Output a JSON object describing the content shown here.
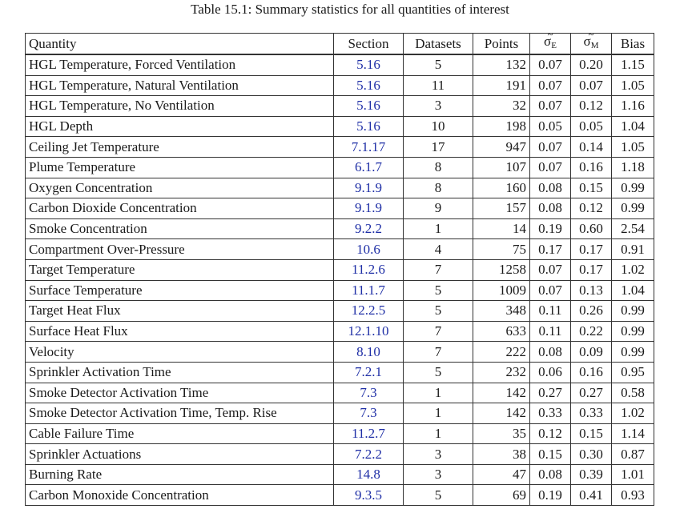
{
  "caption": "Table 15.1: Summary statistics for all quantities of interest",
  "columns": {
    "quantity": "Quantity",
    "section": "Section",
    "datasets": "Datasets",
    "points": "Points",
    "sigma_e_symbol": "σ",
    "sigma_e_sub": "E",
    "sigma_m_symbol": "σ",
    "sigma_m_sub": "M",
    "bias": "Bias"
  },
  "rows": [
    {
      "quantity": "HGL Temperature, Forced Ventilation",
      "section": "5.16",
      "datasets": "5",
      "points": "132",
      "sigma_e": "0.07",
      "sigma_m": "0.20",
      "bias": "1.15"
    },
    {
      "quantity": "HGL Temperature, Natural Ventilation",
      "section": "5.16",
      "datasets": "11",
      "points": "191",
      "sigma_e": "0.07",
      "sigma_m": "0.07",
      "bias": "1.05"
    },
    {
      "quantity": "HGL Temperature, No Ventilation",
      "section": "5.16",
      "datasets": "3",
      "points": "32",
      "sigma_e": "0.07",
      "sigma_m": "0.12",
      "bias": "1.16"
    },
    {
      "quantity": "HGL Depth",
      "section": "5.16",
      "datasets": "10",
      "points": "198",
      "sigma_e": "0.05",
      "sigma_m": "0.05",
      "bias": "1.04"
    },
    {
      "quantity": "Ceiling Jet Temperature",
      "section": "7.1.17",
      "datasets": "17",
      "points": "947",
      "sigma_e": "0.07",
      "sigma_m": "0.14",
      "bias": "1.05"
    },
    {
      "quantity": "Plume Temperature",
      "section": "6.1.7",
      "datasets": "8",
      "points": "107",
      "sigma_e": "0.07",
      "sigma_m": "0.16",
      "bias": "1.18"
    },
    {
      "quantity": "Oxygen Concentration",
      "section": "9.1.9",
      "datasets": "8",
      "points": "160",
      "sigma_e": "0.08",
      "sigma_m": "0.15",
      "bias": "0.99"
    },
    {
      "quantity": "Carbon Dioxide Concentration",
      "section": "9.1.9",
      "datasets": "9",
      "points": "157",
      "sigma_e": "0.08",
      "sigma_m": "0.12",
      "bias": "0.99"
    },
    {
      "quantity": "Smoke Concentration",
      "section": "9.2.2",
      "datasets": "1",
      "points": "14",
      "sigma_e": "0.19",
      "sigma_m": "0.60",
      "bias": "2.54"
    },
    {
      "quantity": "Compartment Over-Pressure",
      "section": "10.6",
      "datasets": "4",
      "points": "75",
      "sigma_e": "0.17",
      "sigma_m": "0.17",
      "bias": "0.91"
    },
    {
      "quantity": "Target Temperature",
      "section": "11.2.6",
      "datasets": "7",
      "points": "1258",
      "sigma_e": "0.07",
      "sigma_m": "0.17",
      "bias": "1.02"
    },
    {
      "quantity": "Surface Temperature",
      "section": "11.1.7",
      "datasets": "5",
      "points": "1009",
      "sigma_e": "0.07",
      "sigma_m": "0.13",
      "bias": "1.04"
    },
    {
      "quantity": "Target Heat Flux",
      "section": "12.2.5",
      "datasets": "5",
      "points": "348",
      "sigma_e": "0.11",
      "sigma_m": "0.26",
      "bias": "0.99"
    },
    {
      "quantity": "Surface Heat Flux",
      "section": "12.1.10",
      "datasets": "7",
      "points": "633",
      "sigma_e": "0.11",
      "sigma_m": "0.22",
      "bias": "0.99"
    },
    {
      "quantity": "Velocity",
      "section": "8.10",
      "datasets": "7",
      "points": "222",
      "sigma_e": "0.08",
      "sigma_m": "0.09",
      "bias": "0.99"
    },
    {
      "quantity": "Sprinkler Activation Time",
      "section": "7.2.1",
      "datasets": "5",
      "points": "232",
      "sigma_e": "0.06",
      "sigma_m": "0.16",
      "bias": "0.95"
    },
    {
      "quantity": "Smoke Detector Activation Time",
      "section": "7.3",
      "datasets": "1",
      "points": "142",
      "sigma_e": "0.27",
      "sigma_m": "0.27",
      "bias": "0.58"
    },
    {
      "quantity": "Smoke Detector Activation Time, Temp. Rise",
      "section": "7.3",
      "datasets": "1",
      "points": "142",
      "sigma_e": "0.33",
      "sigma_m": "0.33",
      "bias": "1.02"
    },
    {
      "quantity": "Cable Failure Time",
      "section": "11.2.7",
      "datasets": "1",
      "points": "35",
      "sigma_e": "0.12",
      "sigma_m": "0.15",
      "bias": "1.14"
    },
    {
      "quantity": "Sprinkler Actuations",
      "section": "7.2.2",
      "datasets": "3",
      "points": "38",
      "sigma_e": "0.15",
      "sigma_m": "0.30",
      "bias": "0.87"
    },
    {
      "quantity": "Burning Rate",
      "section": "14.8",
      "datasets": "3",
      "points": "47",
      "sigma_e": "0.08",
      "sigma_m": "0.39",
      "bias": "1.01"
    },
    {
      "quantity": "Carbon Monoxide Concentration",
      "section": "9.3.5",
      "datasets": "5",
      "points": "69",
      "sigma_e": "0.19",
      "sigma_m": "0.41",
      "bias": "0.93"
    }
  ]
}
